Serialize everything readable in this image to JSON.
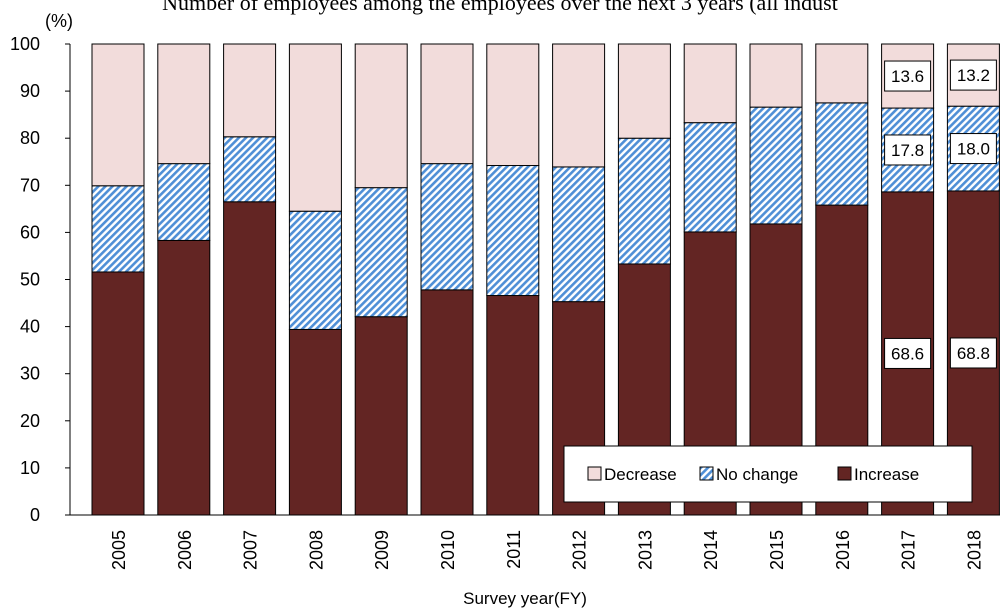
{
  "chart_data": {
    "type": "bar",
    "stacked": true,
    "title": "Number of employees among the employees over the next 3 years (all indust",
    "xlabel": "Survey year(FY)",
    "ylabel_unit": "(%)",
    "ylim": [
      0,
      100
    ],
    "yticks": [
      0,
      10,
      20,
      30,
      40,
      50,
      60,
      70,
      80,
      90,
      100
    ],
    "categories": [
      "2005",
      "2006",
      "2007",
      "2008",
      "2009",
      "2010",
      "2011",
      "2012",
      "2013",
      "2014",
      "2015",
      "2016",
      "2017",
      "2018"
    ],
    "series": [
      {
        "name": "Increase",
        "color": "#632523",
        "pattern": "solid",
        "values": [
          51.6,
          58.3,
          66.5,
          39.4,
          42.1,
          47.8,
          46.6,
          45.3,
          53.3,
          60.1,
          61.8,
          65.8,
          68.6,
          68.8
        ]
      },
      {
        "name": "No change",
        "color": "#4f8fd6",
        "pattern": "diagonal-hatch",
        "values": [
          18.3,
          16.3,
          13.8,
          25.1,
          27.4,
          26.8,
          27.6,
          28.6,
          26.7,
          23.2,
          24.8,
          21.7,
          17.8,
          18.0
        ]
      },
      {
        "name": "Decrease",
        "color": "#f2dcdb",
        "pattern": "solid",
        "values": [
          30.1,
          25.4,
          19.7,
          35.5,
          30.5,
          25.4,
          25.8,
          26.1,
          20.0,
          16.7,
          13.4,
          12.5,
          13.6,
          13.2
        ]
      }
    ],
    "data_labels": [
      {
        "category": "2017",
        "series": "Increase",
        "text": "68.6"
      },
      {
        "category": "2018",
        "series": "Increase",
        "text": "68.8"
      },
      {
        "category": "2017",
        "series": "No change",
        "text": "17.8"
      },
      {
        "category": "2018",
        "series": "No change",
        "text": "18.0"
      },
      {
        "category": "2017",
        "series": "Decrease",
        "text": "13.6"
      },
      {
        "category": "2018",
        "series": "Decrease",
        "text": "13.2"
      }
    ],
    "legend": {
      "placement": "bottom-right",
      "order": [
        "Decrease",
        "No change",
        "Increase"
      ]
    },
    "grid": false
  }
}
